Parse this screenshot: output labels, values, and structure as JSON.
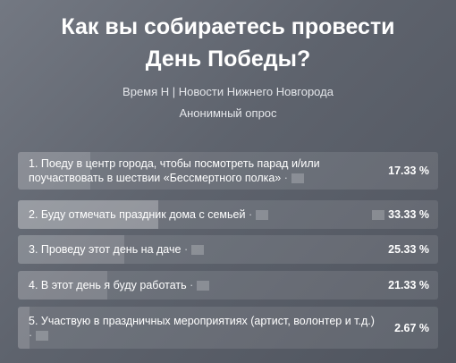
{
  "poll": {
    "title_line1": "Как вы собираетесь провести",
    "title_line2": "День Победы?",
    "author": "Время Н | Новости Нижнего Новгорода",
    "type": "Анонимный опрос",
    "options": [
      {
        "label": "1. Поеду в центр города, чтобы посмотреть парад и/или поучаствовать в шествии «Бессмертного полка»",
        "percent_text": "17.33 %",
        "percent": 17.33,
        "selected": false
      },
      {
        "label": "2. Буду отмечать праздник дома с семьей",
        "percent_text": "33.33 %",
        "percent": 33.33,
        "selected": true
      },
      {
        "label": "3. Проведу этот день на даче",
        "percent_text": "25.33 %",
        "percent": 25.33,
        "selected": false
      },
      {
        "label": "4. В этот день я буду работать",
        "percent_text": "21.33 %",
        "percent": 21.33,
        "selected": false
      },
      {
        "label": "5. Участвую в праздничных мероприятиях (артист, волонтер и т.д.)",
        "percent_text": "2.67 %",
        "percent": 2.67,
        "selected": false
      }
    ],
    "separator": "·"
  }
}
